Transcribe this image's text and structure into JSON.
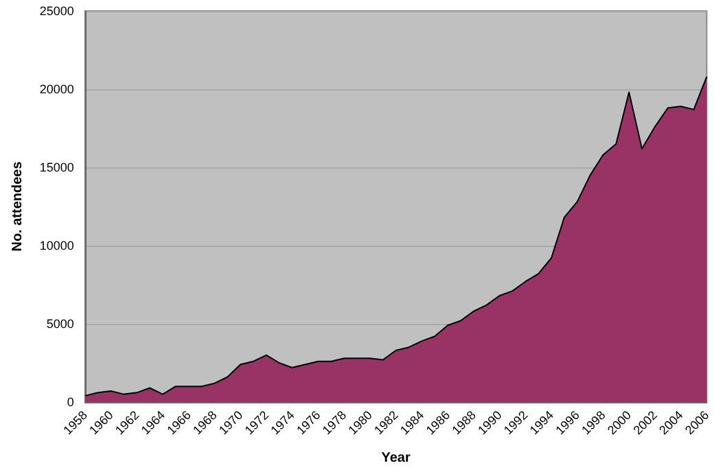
{
  "chart_data": {
    "type": "area",
    "xlabel": "Year",
    "ylabel": "No. attendees",
    "categories": [
      "1958",
      null,
      "1960",
      null,
      "1962",
      null,
      "1964",
      null,
      "1966",
      null,
      "1968",
      null,
      "1970",
      null,
      "1972",
      null,
      "1974",
      null,
      "1976",
      null,
      "1978",
      null,
      "1980",
      null,
      "1982",
      null,
      "1984",
      null,
      "1986",
      null,
      "1988",
      null,
      "1990",
      null,
      "1992",
      null,
      "1994",
      null,
      "1996",
      null,
      "1998",
      null,
      "2000",
      null,
      "2002",
      null,
      "2004",
      null,
      "2006"
    ],
    "series": [
      {
        "color": "#993366",
        "values": [
          400,
          600,
          700,
          500,
          600,
          900,
          500,
          1000,
          1000,
          1000,
          1200,
          1600,
          2400,
          2600,
          3000,
          2500,
          2200,
          2400,
          2600,
          2600,
          2800,
          2800,
          2800,
          2700,
          3300,
          3500,
          3900,
          4200,
          4900,
          5200,
          5800,
          6200,
          6800,
          7100,
          7700,
          8200,
          9200,
          11800,
          12800,
          14500,
          15800,
          16500,
          19800,
          16200,
          17600,
          18800,
          18900,
          18700,
          20800
        ]
      }
    ],
    "ylim": [
      0,
      25000
    ],
    "yticks": [
      0,
      5000,
      10000,
      15000,
      20000,
      25000
    ],
    "grid": "y",
    "marker": "none",
    "line_style": "solid"
  }
}
